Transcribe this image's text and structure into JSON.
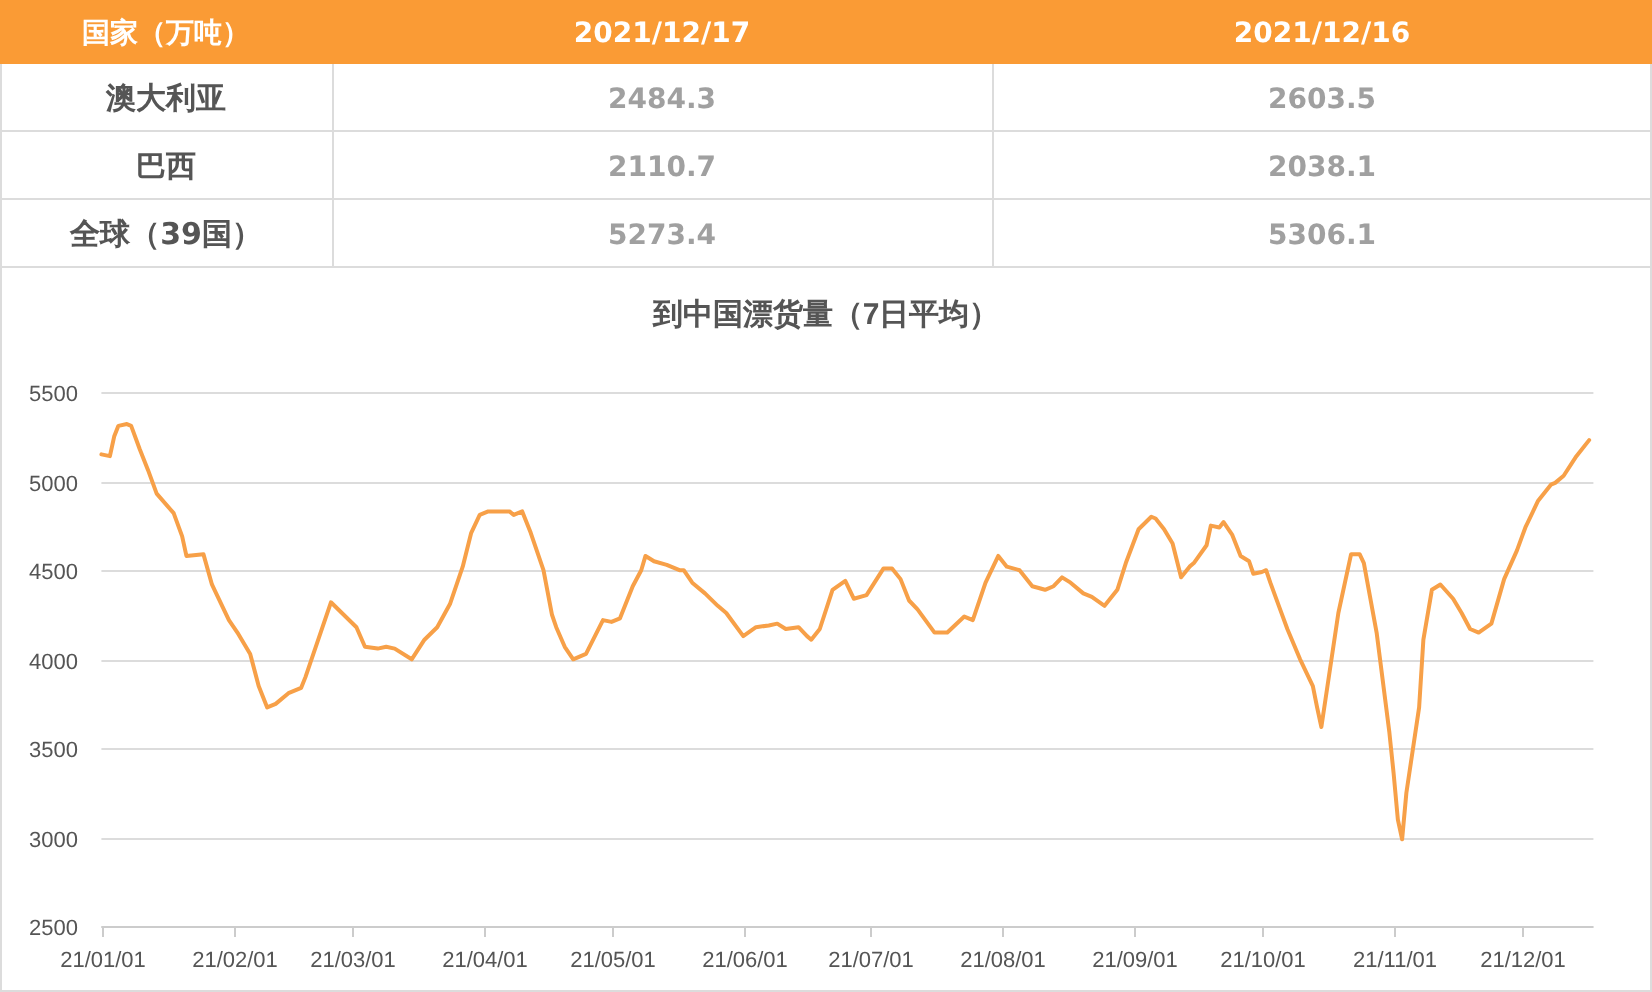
{
  "chart_data": [
    {
      "type": "heatmap",
      "ylabel": "国家（万吨）",
      "categories": [
        "2021/12/17",
        "2021/12/16"
      ],
      "y_categories": [
        "澳大利亚",
        "巴西",
        "全球（39国）"
      ],
      "cells": [
        [
          2484.3,
          2603.5
        ],
        [
          2110.7,
          2038.1
        ],
        [
          5273.4,
          5306.1
        ]
      ],
      "data_labels": true
    },
    {
      "type": "line",
      "title": "到中国漂货量（7日平均）",
      "color": "#f7a048",
      "grid": "y",
      "xlim": [
        "2021-01-01",
        "2021-12-18"
      ],
      "ylim": [
        2500,
        5500
      ],
      "yticks": [
        2500,
        3000,
        3500,
        4000,
        4500,
        5000,
        5500
      ],
      "xticks": [
        {
          "value": "2021-01-01",
          "label": "21/01/01"
        },
        {
          "value": "2021-02-01",
          "label": "21/02/01"
        },
        {
          "value": "2021-03-01",
          "label": "21/03/01"
        },
        {
          "value": "2021-04-01",
          "label": "21/04/01"
        },
        {
          "value": "2021-05-01",
          "label": "21/05/01"
        },
        {
          "value": "2021-06-01",
          "label": "21/06/01"
        },
        {
          "value": "2021-07-01",
          "label": "21/07/01"
        },
        {
          "value": "2021-08-01",
          "label": "21/08/01"
        },
        {
          "value": "2021-09-01",
          "label": "21/09/01"
        },
        {
          "value": "2021-10-01",
          "label": "21/10/01"
        },
        {
          "value": "2021-11-01",
          "label": "21/11/01"
        },
        {
          "value": "2021-12-01",
          "label": "21/12/01"
        }
      ],
      "x": [
        "2021-01-01",
        "2021-01-03",
        "2021-01-04",
        "2021-01-05",
        "2021-01-07",
        "2021-01-08",
        "2021-01-10",
        "2021-01-12",
        "2021-01-14",
        "2021-01-18",
        "2021-01-20",
        "2021-01-21",
        "2021-01-25",
        "2021-01-27",
        "2021-01-28",
        "2021-01-31",
        "2021-02-02",
        "2021-02-05",
        "2021-02-07",
        "2021-02-09",
        "2021-02-11",
        "2021-02-14",
        "2021-02-16",
        "2021-02-17",
        "2021-02-18",
        "2021-02-24",
        "2021-03-02",
        "2021-03-04",
        "2021-03-07",
        "2021-03-09",
        "2021-03-11",
        "2021-03-15",
        "2021-03-18",
        "2021-03-21",
        "2021-03-24",
        "2021-03-27",
        "2021-03-29",
        "2021-03-31",
        "2021-04-02",
        "2021-04-07",
        "2021-04-08",
        "2021-04-10",
        "2021-04-12",
        "2021-04-15",
        "2021-04-17",
        "2021-04-18",
        "2021-04-20",
        "2021-04-22",
        "2021-04-25",
        "2021-04-29",
        "2021-05-01",
        "2021-05-03",
        "2021-05-06",
        "2021-05-08",
        "2021-05-09",
        "2021-05-11",
        "2021-05-14",
        "2021-05-17",
        "2021-05-18",
        "2021-05-20",
        "2021-05-23",
        "2021-05-26",
        "2021-05-28",
        "2021-06-01",
        "2021-06-04",
        "2021-06-07",
        "2021-06-09",
        "2021-06-11",
        "2021-06-14",
        "2021-06-16",
        "2021-06-17",
        "2021-06-19",
        "2021-06-22",
        "2021-06-25",
        "2021-06-27",
        "2021-06-30",
        "2021-07-04",
        "2021-07-06",
        "2021-07-08",
        "2021-07-10",
        "2021-07-12",
        "2021-07-16",
        "2021-07-19",
        "2021-07-23",
        "2021-07-25",
        "2021-07-28",
        "2021-07-31",
        "2021-08-02",
        "2021-08-05",
        "2021-08-08",
        "2021-08-11",
        "2021-08-13",
        "2021-08-15",
        "2021-08-17",
        "2021-08-20",
        "2021-08-22",
        "2021-08-25",
        "2021-08-28",
        "2021-08-30",
        "2021-09-02",
        "2021-09-05",
        "2021-09-06",
        "2021-09-08",
        "2021-09-10",
        "2021-09-12",
        "2021-09-14",
        "2021-09-15",
        "2021-09-18",
        "2021-09-19",
        "2021-09-21",
        "2021-09-22",
        "2021-09-24",
        "2021-09-26",
        "2021-09-28",
        "2021-09-29",
        "2021-10-01",
        "2021-10-02",
        "2021-10-03",
        "2021-10-05",
        "2021-10-07",
        "2021-10-10",
        "2021-10-13",
        "2021-10-14",
        "2021-10-15",
        "2021-10-17",
        "2021-10-19",
        "2021-10-22",
        "2021-10-24",
        "2021-10-25",
        "2021-10-28",
        "2021-10-31",
        "2021-11-01",
        "2021-11-02",
        "2021-11-03",
        "2021-11-04",
        "2021-11-07",
        "2021-11-08",
        "2021-11-10",
        "2021-11-12",
        "2021-11-15",
        "2021-11-17",
        "2021-11-19",
        "2021-11-21",
        "2021-11-24",
        "2021-11-27",
        "2021-11-30",
        "2021-12-02",
        "2021-12-05",
        "2021-12-08",
        "2021-12-09",
        "2021-12-11",
        "2021-12-14",
        "2021-12-17"
      ],
      "values": [
        5150,
        5140,
        5250,
        5310,
        5320,
        5310,
        5180,
        5060,
        4930,
        4820,
        4690,
        4580,
        4590,
        4420,
        4370,
        4220,
        4150,
        4030,
        3850,
        3730,
        3750,
        3810,
        3830,
        3840,
        3900,
        4320,
        4180,
        4070,
        4060,
        4070,
        4060,
        4000,
        4110,
        4180,
        4310,
        4520,
        4710,
        4810,
        4830,
        4830,
        4810,
        4830,
        4710,
        4500,
        4250,
        4180,
        4070,
        4000,
        4030,
        4220,
        4210,
        4230,
        4410,
        4500,
        4580,
        4550,
        4530,
        4500,
        4500,
        4430,
        4370,
        4300,
        4260,
        4130,
        4180,
        4190,
        4200,
        4170,
        4180,
        4130,
        4110,
        4170,
        4390,
        4440,
        4340,
        4360,
        4510,
        4510,
        4450,
        4330,
        4280,
        4150,
        4150,
        4240,
        4220,
        4430,
        4580,
        4520,
        4500,
        4410,
        4390,
        4410,
        4460,
        4430,
        4370,
        4350,
        4300,
        4390,
        4540,
        4730,
        4800,
        4790,
        4730,
        4650,
        4460,
        4520,
        4540,
        4640,
        4750,
        4740,
        4770,
        4700,
        4580,
        4550,
        4480,
        4490,
        4500,
        4430,
        4300,
        4170,
        4000,
        3850,
        3730,
        3620,
        3940,
        4260,
        4590,
        4590,
        4540,
        4150,
        3590,
        3360,
        3100,
        2990,
        3250,
        3730,
        4110,
        4390,
        4420,
        4340,
        4260,
        4170,
        4150,
        4200,
        4450,
        4610,
        4740,
        4890,
        4980,
        4990,
        5030,
        5140,
        5230
      ]
    }
  ]
}
